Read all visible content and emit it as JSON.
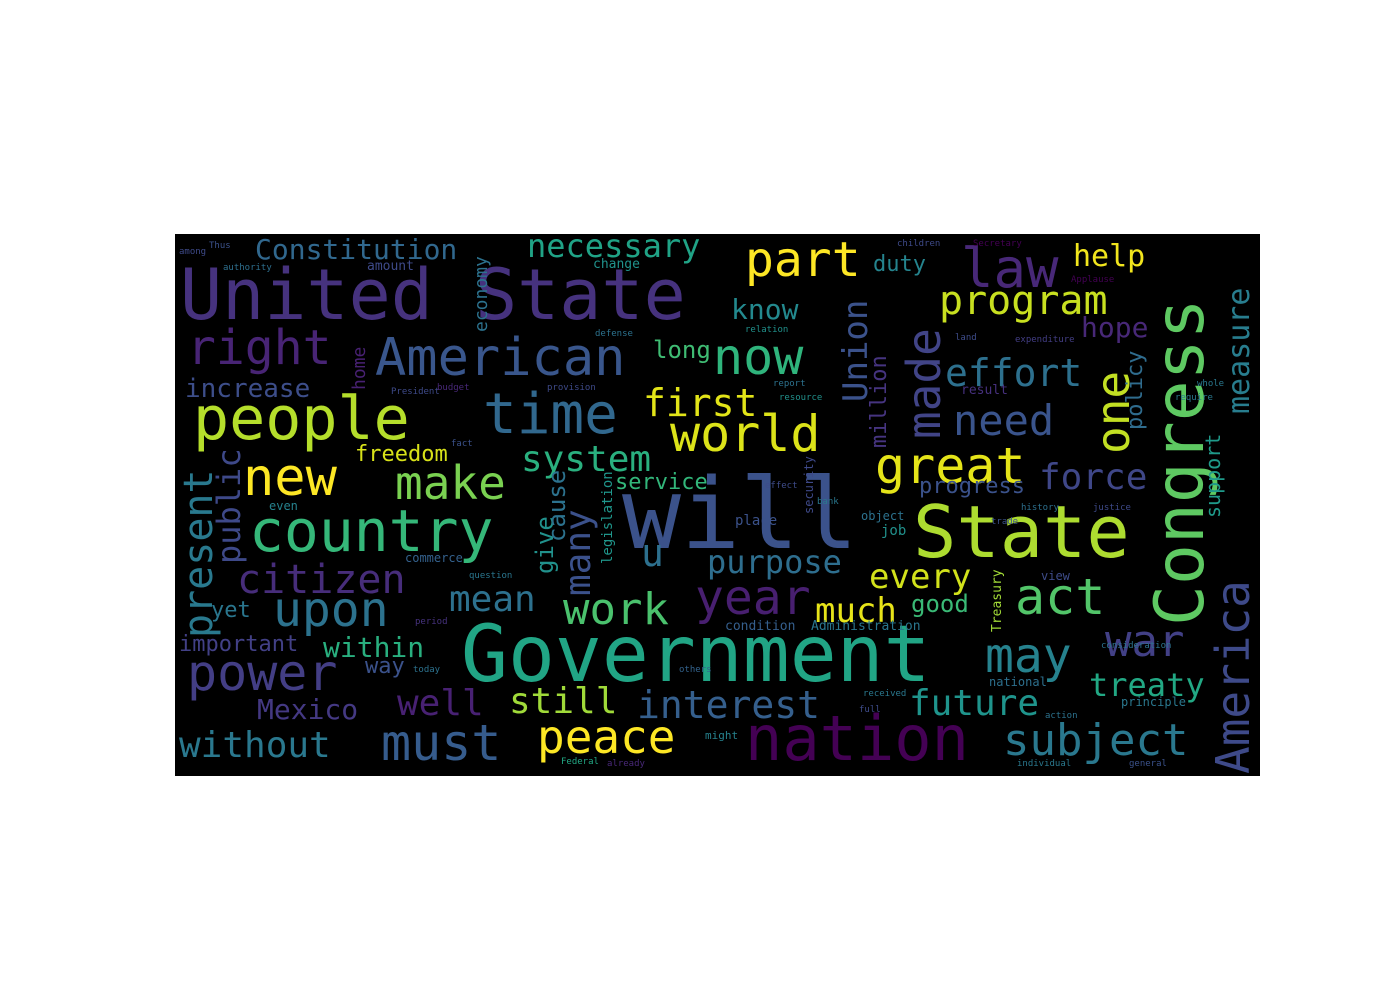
{
  "words": [
    {
      "text": "will",
      "color": "#3b528b"
    },
    {
      "text": "Government",
      "color": "#21a585"
    },
    {
      "text": "United State",
      "color": "#46327e"
    },
    {
      "text": "State",
      "color": "#addc30"
    },
    {
      "text": "Congress",
      "color": "#5ec962"
    },
    {
      "text": "nation",
      "color": "#440154"
    },
    {
      "text": "American",
      "color": "#39568c"
    },
    {
      "text": "people",
      "color": "#b5de2b"
    },
    {
      "text": "country",
      "color": "#35b779"
    },
    {
      "text": "time",
      "color": "#31688e"
    },
    {
      "text": "world",
      "color": "#dce319"
    },
    {
      "text": "great",
      "color": "#e5e419"
    },
    {
      "text": "law",
      "color": "#482878"
    },
    {
      "text": "part",
      "color": "#fde725"
    },
    {
      "text": "program",
      "color": "#c8e020"
    },
    {
      "text": "right",
      "color": "#482475"
    },
    {
      "text": "America",
      "color": "#3e4a89"
    },
    {
      "text": "new",
      "color": "#fde725"
    },
    {
      "text": "make",
      "color": "#7ad151"
    },
    {
      "text": "now",
      "color": "#2fb47c"
    },
    {
      "text": "power",
      "color": "#433e85"
    },
    {
      "text": "upon",
      "color": "#2c728e"
    },
    {
      "text": "must",
      "color": "#365c8d"
    },
    {
      "text": "year",
      "color": "#481f70"
    },
    {
      "text": "peace",
      "color": "#fde725"
    },
    {
      "text": "may",
      "color": "#26828e"
    },
    {
      "text": "war",
      "color": "#424086"
    },
    {
      "text": "act",
      "color": "#52c569"
    },
    {
      "text": "subject",
      "color": "#2a788e"
    },
    {
      "text": "citizen",
      "color": "#472d7b"
    },
    {
      "text": "work",
      "color": "#4ac16d"
    },
    {
      "text": "one",
      "color": "#c2df23"
    },
    {
      "text": "made",
      "color": "#414487"
    },
    {
      "text": "first",
      "color": "#e2e418"
    },
    {
      "text": "effort",
      "color": "#2d708e"
    },
    {
      "text": "need",
      "color": "#3a548c"
    },
    {
      "text": "system",
      "color": "#2ab07f"
    },
    {
      "text": "force",
      "color": "#3f4788"
    },
    {
      "text": "interest",
      "color": "#355f8d"
    },
    {
      "text": "future",
      "color": "#1f948c"
    },
    {
      "text": "treaty",
      "color": "#22a884"
    },
    {
      "text": "purpose",
      "color": "#2e6e8e"
    },
    {
      "text": "Constitution",
      "color": "#31688e"
    },
    {
      "text": "necessary",
      "color": "#20a386"
    },
    {
      "text": "help",
      "color": "#f1e51d"
    },
    {
      "text": "Union",
      "color": "#3b528b"
    },
    {
      "text": "measure",
      "color": "#287d8e"
    },
    {
      "text": "present",
      "color": "#29798e"
    },
    {
      "text": "public",
      "color": "#3e4989"
    },
    {
      "text": "many",
      "color": "#3b518b"
    },
    {
      "text": "mean",
      "color": "#2d718e"
    },
    {
      "text": "every",
      "color": "#d2e21b"
    },
    {
      "text": "much",
      "color": "#e7e419"
    },
    {
      "text": "still",
      "color": "#a0da39"
    },
    {
      "text": "well",
      "color": "#482173"
    },
    {
      "text": "without",
      "color": "#2a788e"
    },
    {
      "text": "within",
      "color": "#29af7f"
    },
    {
      "text": "Mexico",
      "color": "#443983"
    },
    {
      "text": "increase",
      "color": "#3d4e8a"
    },
    {
      "text": "hope",
      "color": "#482878"
    },
    {
      "text": "know",
      "color": "#23898e"
    },
    {
      "text": "long",
      "color": "#3fbc73"
    },
    {
      "text": "freedom",
      "color": "#d8e219"
    },
    {
      "text": "progress",
      "color": "#3b528b"
    },
    {
      "text": "service",
      "color": "#32b67a"
    },
    {
      "text": "duty",
      "color": "#25848e"
    },
    {
      "text": "policy",
      "color": "#2f6c8e"
    },
    {
      "text": "support",
      "color": "#1f9a8a"
    },
    {
      "text": "million",
      "color": "#463480"
    },
    {
      "text": "give",
      "color": "#21918c"
    },
    {
      "text": "cause",
      "color": "#2c728e"
    },
    {
      "text": "legislation",
      "color": "#1f968b"
    },
    {
      "text": "u",
      "color": "#2d708e"
    },
    {
      "text": "good",
      "color": "#3aba76"
    },
    {
      "text": "important",
      "color": "#424086"
    },
    {
      "text": "yet",
      "color": "#2a768e"
    },
    {
      "text": "way",
      "color": "#3b528b"
    },
    {
      "text": "economy",
      "color": "#2c728e"
    },
    {
      "text": "home",
      "color": "#482173"
    },
    {
      "text": "amount",
      "color": "#3e4a89"
    },
    {
      "text": "change",
      "color": "#20928c"
    },
    {
      "text": "Administration",
      "color": "#2a768e"
    },
    {
      "text": "condition",
      "color": "#355f8d"
    },
    {
      "text": "Treasury",
      "color": "#a2da37"
    },
    {
      "text": "national",
      "color": "#2d708e"
    },
    {
      "text": "principle",
      "color": "#2a788e"
    },
    {
      "text": "result",
      "color": "#46307e"
    },
    {
      "text": "place",
      "color": "#3b528b"
    },
    {
      "text": "job",
      "color": "#21918c"
    },
    {
      "text": "security",
      "color": "#3e4989"
    },
    {
      "text": "object",
      "color": "#2c728e"
    },
    {
      "text": "view",
      "color": "#3e4c8a"
    },
    {
      "text": "commerce",
      "color": "#34618d"
    },
    {
      "text": "even",
      "color": "#26828e"
    },
    {
      "text": "Secretary",
      "color": "#440154"
    },
    {
      "text": "children",
      "color": "#3e4a89"
    },
    {
      "text": "authority",
      "color": "#2e6f8e"
    },
    {
      "text": "already",
      "color": "#482878"
    },
    {
      "text": "Federal",
      "color": "#22a884"
    },
    {
      "text": "general",
      "color": "#3b528b"
    },
    {
      "text": "individual",
      "color": "#2a788e"
    },
    {
      "text": "action",
      "color": "#2c728e"
    },
    {
      "text": "question",
      "color": "#2a768e"
    },
    {
      "text": "period",
      "color": "#46327e"
    },
    {
      "text": "President",
      "color": "#3e4a89"
    },
    {
      "text": "expenditure",
      "color": "#433e85"
    },
    {
      "text": "land",
      "color": "#3e4c8a"
    },
    {
      "text": "Applause",
      "color": "#440154"
    },
    {
      "text": "defense",
      "color": "#2c728e"
    },
    {
      "text": "relation",
      "color": "#21918c"
    },
    {
      "text": "fact",
      "color": "#3b528b"
    },
    {
      "text": "budget",
      "color": "#482878"
    },
    {
      "text": "provision",
      "color": "#3e4a89"
    },
    {
      "text": "today",
      "color": "#2c728e"
    },
    {
      "text": "others",
      "color": "#33638d"
    },
    {
      "text": "might",
      "color": "#26828e"
    },
    {
      "text": "full",
      "color": "#3e4c8a"
    },
    {
      "text": "received",
      "color": "#2a788e"
    },
    {
      "text": "consideration",
      "color": "#2c728e"
    },
    {
      "text": "justice",
      "color": "#3e4a89"
    },
    {
      "text": "history",
      "color": "#2d708e"
    },
    {
      "text": "trade",
      "color": "#3b528b"
    },
    {
      "text": "require",
      "color": "#2a788e"
    },
    {
      "text": "whole",
      "color": "#2a788e"
    },
    {
      "text": "report",
      "color": "#2c728e"
    },
    {
      "text": "resource",
      "color": "#21918c"
    },
    {
      "text": "effect",
      "color": "#3e4c8a"
    },
    {
      "text": "bank",
      "color": "#2a788e"
    },
    {
      "text": "Thus",
      "color": "#3b528b"
    },
    {
      "text": "among",
      "color": "#3e4a89"
    }
  ]
}
